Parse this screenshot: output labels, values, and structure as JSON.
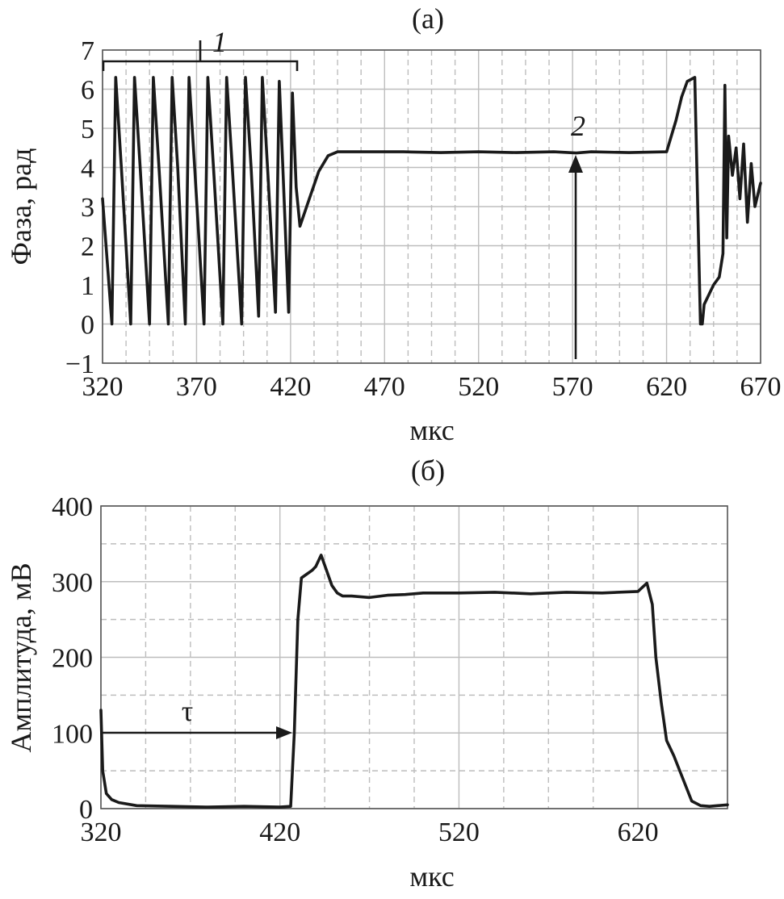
{
  "chart_data": [
    {
      "type": "line",
      "panel_label": "(а)",
      "title": "",
      "xlabel": "мкс",
      "ylabel": "Фаза, рад",
      "xlim": [
        320,
        670
      ],
      "ylim": [
        -1,
        7
      ],
      "x_ticks": [
        320,
        370,
        420,
        470,
        520,
        570,
        620,
        670
      ],
      "y_ticks": [
        -1,
        0,
        1,
        2,
        3,
        4,
        5,
        6,
        7
      ],
      "x_tick_labels": [
        "320",
        "370",
        "420",
        "470",
        "520",
        "570",
        "620",
        "670"
      ],
      "y_tick_labels": [
        "−1",
        "0",
        "1",
        "2",
        "3",
        "4",
        "5",
        "6",
        "7"
      ],
      "grid": true,
      "series": [
        {
          "x": [
            320,
            325,
            327,
            330,
            335,
            337,
            340,
            345,
            347,
            350,
            355,
            357,
            360,
            364,
            366,
            369,
            374,
            376,
            379,
            384,
            386,
            389,
            394,
            396,
            399,
            403,
            405,
            408,
            412,
            414,
            416,
            419,
            421,
            423,
            425,
            430,
            435,
            440,
            445,
            450,
            460,
            480,
            500,
            520,
            540,
            560,
            572,
            580,
            600,
            620,
            625,
            628,
            631,
            635,
            638,
            639,
            640,
            645,
            648,
            650,
            651,
            652,
            653,
            655,
            657,
            659,
            661,
            663,
            665,
            667,
            670
          ],
          "y": [
            3.2,
            0.0,
            6.3,
            4.0,
            0.0,
            6.3,
            4.0,
            0.0,
            6.3,
            4.0,
            0.0,
            6.3,
            4.0,
            0.0,
            6.3,
            4.0,
            0.0,
            6.3,
            4.0,
            0.0,
            6.3,
            4.0,
            0.0,
            6.3,
            4.0,
            0.2,
            6.3,
            3.8,
            0.3,
            6.2,
            3.9,
            0.3,
            5.9,
            3.5,
            2.5,
            3.2,
            3.9,
            4.3,
            4.4,
            4.4,
            4.4,
            4.4,
            4.38,
            4.4,
            4.38,
            4.4,
            4.37,
            4.4,
            4.38,
            4.4,
            5.2,
            5.8,
            6.2,
            6.3,
            0.0,
            0.0,
            0.5,
            1.0,
            1.2,
            1.8,
            6.1,
            2.2,
            4.8,
            3.8,
            4.5,
            3.2,
            4.6,
            2.6,
            4.1,
            3.0,
            3.6
          ]
        }
      ],
      "annotations": [
        {
          "text": "1",
          "note": "bracket over the oscillating region",
          "x_range": [
            320,
            425
          ]
        },
        {
          "text": "2",
          "note": "arrow pointing to the flat phase level",
          "x": 572,
          "y": 4.4
        }
      ]
    },
    {
      "type": "line",
      "panel_label": "(б)",
      "title": "",
      "xlabel": "мкс",
      "ylabel": "Амплитуда, мВ",
      "xlim": [
        320,
        670
      ],
      "ylim": [
        0,
        400
      ],
      "x_ticks": [
        320,
        420,
        520,
        620
      ],
      "y_ticks": [
        0,
        100,
        200,
        300,
        400
      ],
      "x_tick_labels": [
        "320",
        "420",
        "520",
        "620"
      ],
      "y_tick_labels": [
        "0",
        "100",
        "200",
        "300",
        "400"
      ],
      "grid": true,
      "series": [
        {
          "x": [
            320,
            321,
            323,
            326,
            330,
            340,
            360,
            380,
            400,
            420,
            426,
            428,
            430,
            432,
            435,
            438,
            440,
            443,
            446,
            449,
            452,
            455,
            460,
            470,
            480,
            490,
            500,
            520,
            540,
            560,
            580,
            600,
            620,
            625,
            628,
            630,
            633,
            636,
            640,
            645,
            650,
            655,
            660,
            670
          ],
          "y": [
            130,
            50,
            20,
            12,
            8,
            4,
            3,
            2,
            3,
            2,
            3,
            100,
            250,
            305,
            310,
            315,
            320,
            335,
            315,
            295,
            285,
            281,
            281,
            279,
            282,
            283,
            285,
            285,
            286,
            284,
            286,
            285,
            287,
            298,
            270,
            200,
            140,
            90,
            70,
            40,
            10,
            4,
            3,
            5
          ]
        }
      ],
      "annotations": [
        {
          "text": "τ",
          "note": "arrow from 320 to the rising edge at 100 mV",
          "x_range": [
            320,
            426
          ],
          "y": 100
        }
      ]
    }
  ]
}
